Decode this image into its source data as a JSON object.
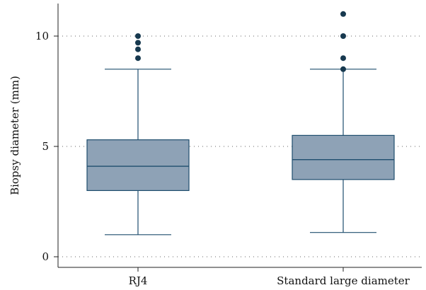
{
  "chart_data": {
    "type": "box",
    "ylabel": "Biopsy diameter (mm)",
    "xlabel": "",
    "ylim": [
      -0.3,
      11.5
    ],
    "yticks": [
      0,
      5,
      10
    ],
    "ytick_labels": [
      "0",
      "5",
      "10"
    ],
    "grid": "horizontal dotted",
    "colors": {
      "box_fill": "#8ea2b6",
      "box_stroke": "#1f4e6e",
      "outlier": "#17394f"
    },
    "categories": [
      "RJ4",
      "Standard large diameter"
    ],
    "boxes": [
      {
        "name": "RJ4",
        "whisker_low": 1.0,
        "q1": 3.0,
        "median": 4.1,
        "q3": 5.3,
        "whisker_high": 8.5,
        "outliers": [
          9.0,
          9.4,
          9.7,
          10.0
        ]
      },
      {
        "name": "Standard large diameter",
        "whisker_low": 1.1,
        "q1": 3.5,
        "median": 4.4,
        "q3": 5.5,
        "whisker_high": 8.5,
        "outliers": [
          8.5,
          9.0,
          10.0,
          11.0
        ]
      }
    ]
  }
}
